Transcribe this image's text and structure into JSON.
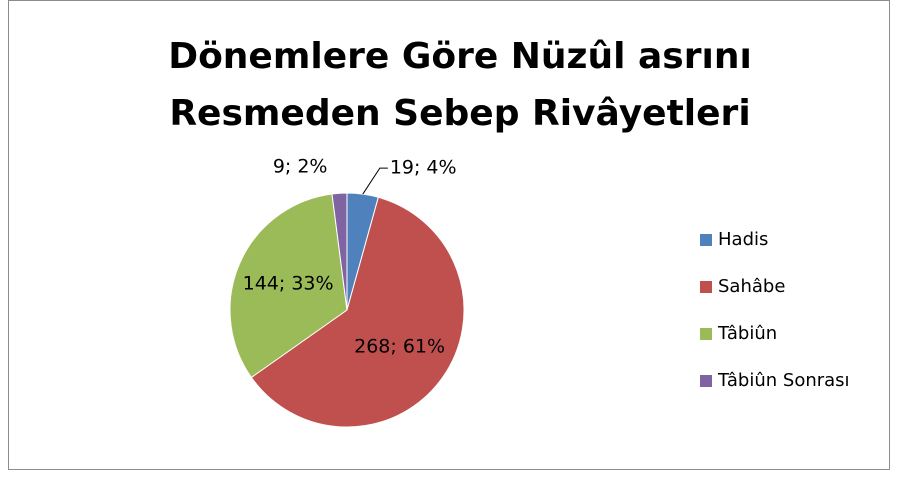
{
  "chart_data": {
    "type": "pie",
    "title": [
      "Dönemlere Göre Nüzûl asrını",
      "Resmeden Sebep Rivâyetleri"
    ],
    "categories": [
      "Hadis",
      "Sahâbe",
      "Tâbiûn",
      "Tâbiûn Sonrası"
    ],
    "values": [
      19,
      268,
      144,
      9
    ],
    "value_labels": [
      "19; 4%",
      "268; 61%",
      "144; 33%",
      "9; 2%"
    ],
    "colors": [
      "#4f81bd",
      "#c0504d",
      "#9bbb59",
      "#8064a2"
    ],
    "legend": "right"
  }
}
